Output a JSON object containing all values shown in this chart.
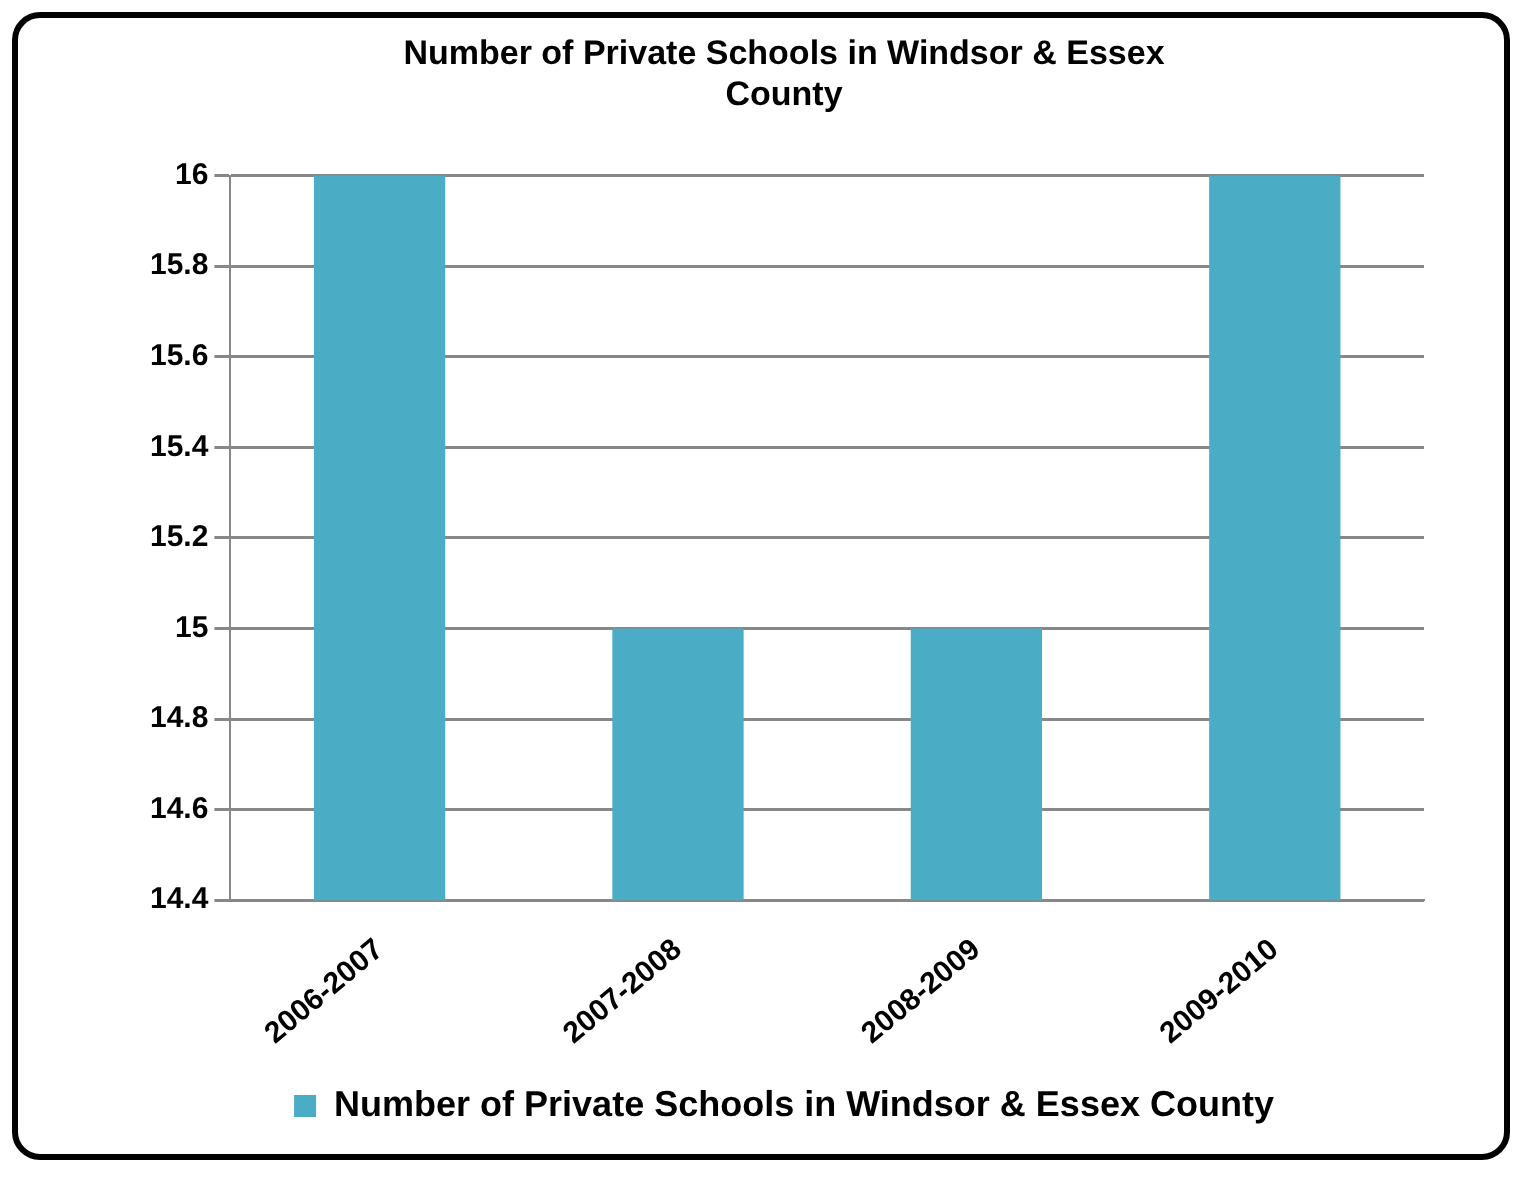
{
  "chart_data": {
    "type": "bar",
    "title": "Number of Private Schools in Windsor & Essex County",
    "categories": [
      "2006-2007",
      "2007-2008",
      "2008-2009",
      "2009-2010"
    ],
    "series": [
      {
        "name": "Number of Private Schools in Windsor & Essex County",
        "color": "#4bacc6",
        "values": [
          16,
          15,
          15,
          16
        ]
      }
    ],
    "ylim": [
      14.4,
      16
    ],
    "yticks": [
      14.4,
      14.6,
      14.8,
      15,
      15.2,
      15.4,
      15.6,
      15.8,
      16
    ],
    "grid": "y",
    "legend": "bottom"
  }
}
